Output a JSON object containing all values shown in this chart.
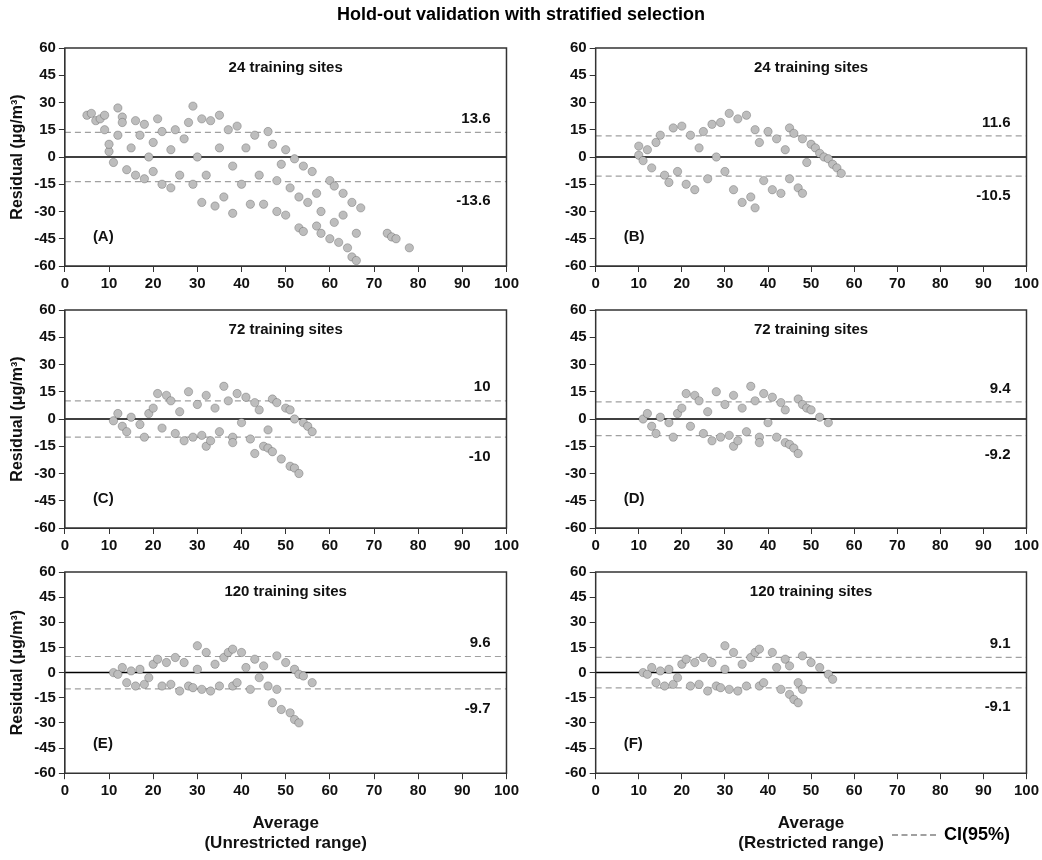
{
  "chart_data": [
    {
      "type": "scatter",
      "title": "Hold-out validation with stratified selection",
      "ylabel": "Residual (μg/m³)",
      "color": "#bdbdbd",
      "marker": "circle",
      "grid": false,
      "legend": false,
      "x": [
        5,
        6,
        7,
        8,
        9,
        9,
        10,
        10,
        11,
        12,
        12,
        13,
        13,
        14,
        15,
        16,
        16,
        17,
        18,
        18,
        19,
        20,
        20,
        21,
        22,
        22,
        24,
        24,
        25,
        26,
        27,
        28,
        29,
        29,
        30,
        31,
        31,
        32,
        33,
        34,
        35,
        35,
        36,
        37,
        38,
        38,
        39,
        40,
        41,
        42,
        43,
        44,
        45,
        46,
        47,
        48,
        48,
        49,
        50,
        50,
        51,
        52,
        53,
        53,
        54,
        54,
        55,
        56,
        57,
        57,
        58,
        58,
        60,
        60,
        61,
        61,
        62,
        63,
        63,
        64,
        65,
        65,
        66,
        66,
        67,
        73,
        74,
        75,
        78
      ],
      "values": [
        23,
        24,
        20,
        21,
        23,
        15,
        3,
        7,
        -3,
        27,
        12,
        22,
        19,
        -7,
        5,
        -10,
        20,
        12,
        -12,
        18,
        0,
        8,
        -8,
        21,
        -15,
        14,
        -17,
        4,
        15,
        -10,
        10,
        19,
        28,
        -15,
        0,
        21,
        -25,
        -10,
        20,
        -27,
        23,
        5,
        -22,
        15,
        -31,
        -5,
        17,
        -15,
        5,
        -26,
        12,
        -10,
        -26,
        14,
        7,
        -13,
        -30,
        -4,
        -32,
        4,
        -17,
        -1,
        -22,
        -39,
        -5,
        -41,
        -25,
        -8,
        -20,
        -38,
        -30,
        -42,
        -13,
        -45,
        -16,
        -36,
        -47,
        -20,
        -32,
        -50,
        -25,
        -55,
        -42,
        -57,
        -28,
        -42,
        -44,
        -45,
        -50
      ],
      "xlim": [
        0,
        100
      ],
      "xticks": [
        0,
        10,
        20,
        30,
        40,
        50,
        60,
        70,
        80,
        90,
        100
      ],
      "ylim": [
        -60,
        60
      ],
      "yticks": [
        -60,
        -45,
        -30,
        -15,
        0,
        15,
        30,
        45,
        60
      ],
      "ref_lines": [
        {
          "axis": "y",
          "value": 0,
          "color": "#000000",
          "line_style": "solid"
        },
        {
          "axis": "y",
          "value": 13.6,
          "label": "13.6",
          "color": "#a0a0a0",
          "line_style": "dashed"
        },
        {
          "axis": "y",
          "value": -13.6,
          "label": "-13.6",
          "color": "#a0a0a0",
          "line_style": "dashed"
        }
      ],
      "annotations": [
        "24 training sites",
        "(A)"
      ]
    },
    {
      "type": "scatter",
      "color": "#bdbdbd",
      "marker": "circle",
      "grid": false,
      "legend": false,
      "x": [
        10,
        10,
        11,
        12,
        13,
        14,
        15,
        16,
        17,
        18,
        19,
        20,
        21,
        22,
        23,
        24,
        25,
        26,
        27,
        28,
        29,
        30,
        31,
        32,
        33,
        34,
        35,
        36,
        37,
        37,
        38,
        39,
        40,
        41,
        42,
        43,
        44,
        45,
        45,
        46,
        47,
        48,
        48,
        49,
        50,
        51,
        52,
        53,
        54,
        55,
        56,
        57
      ],
      "values": [
        6,
        1,
        -2,
        4,
        -6,
        8,
        12,
        -10,
        -14,
        16,
        -8,
        17,
        -15,
        12,
        -18,
        5,
        14,
        -12,
        18,
        0,
        19,
        -8,
        24,
        -18,
        21,
        -25,
        23,
        -22,
        -28,
        15,
        8,
        -13,
        14,
        -18,
        10,
        -20,
        4,
        16,
        -12,
        13,
        -17,
        10,
        -20,
        -3,
        7,
        5,
        2,
        0,
        -1,
        -4,
        -6,
        -9
      ],
      "xlim": [
        0,
        100
      ],
      "xticks": [
        0,
        10,
        20,
        30,
        40,
        50,
        60,
        70,
        80,
        90,
        100
      ],
      "ylim": [
        -60,
        60
      ],
      "yticks": [
        -60,
        -45,
        -30,
        -15,
        0,
        15,
        30,
        45,
        60
      ],
      "ref_lines": [
        {
          "axis": "y",
          "value": 0,
          "color": "#000000",
          "line_style": "solid"
        },
        {
          "axis": "y",
          "value": 11.6,
          "label": "11.6",
          "color": "#a0a0a0",
          "line_style": "dashed"
        },
        {
          "axis": "y",
          "value": -10.5,
          "label": "-10.5",
          "color": "#a0a0a0",
          "line_style": "dashed"
        }
      ],
      "annotations": [
        "24 training sites",
        "(B)"
      ]
    },
    {
      "type": "scatter",
      "ylabel": "Residual (μg/m³)",
      "color": "#bdbdbd",
      "marker": "circle",
      "grid": false,
      "legend": false,
      "x": [
        11,
        12,
        13,
        14,
        15,
        17,
        18,
        19,
        20,
        21,
        22,
        23,
        24,
        25,
        26,
        27,
        28,
        29,
        30,
        31,
        32,
        32,
        33,
        34,
        35,
        36,
        37,
        38,
        38,
        39,
        40,
        41,
        42,
        43,
        43,
        44,
        45,
        46,
        46,
        47,
        47,
        48,
        49,
        50,
        51,
        51,
        52,
        52,
        53,
        54,
        55,
        56
      ],
      "values": [
        -1,
        3,
        -4,
        -7,
        1,
        -3,
        -10,
        3,
        6,
        14,
        -5,
        13,
        10,
        -8,
        4,
        -12,
        15,
        -10,
        8,
        -9,
        13,
        -15,
        -12,
        6,
        -7,
        18,
        10,
        -10,
        -13,
        14,
        -2,
        12,
        -11,
        9,
        -19,
        5,
        -15,
        -16,
        -6,
        11,
        -18,
        9,
        -22,
        6,
        -26,
        5,
        -27,
        0,
        -30,
        -2,
        -4,
        -7
      ],
      "xlim": [
        0,
        100
      ],
      "xticks": [
        0,
        10,
        20,
        30,
        40,
        50,
        60,
        70,
        80,
        90,
        100
      ],
      "ylim": [
        -60,
        60
      ],
      "yticks": [
        -60,
        -45,
        -30,
        -15,
        0,
        15,
        30,
        45,
        60
      ],
      "ref_lines": [
        {
          "axis": "y",
          "value": 0,
          "color": "#000000",
          "line_style": "solid"
        },
        {
          "axis": "y",
          "value": 10,
          "label": "10",
          "color": "#a0a0a0",
          "line_style": "dashed"
        },
        {
          "axis": "y",
          "value": -10,
          "label": "-10",
          "color": "#a0a0a0",
          "line_style": "dashed"
        }
      ],
      "annotations": [
        "72 training sites",
        "(C)"
      ]
    },
    {
      "type": "scatter",
      "color": "#bdbdbd",
      "marker": "circle",
      "grid": false,
      "legend": false,
      "x": [
        11,
        12,
        13,
        14,
        15,
        17,
        18,
        19,
        20,
        21,
        22,
        23,
        24,
        25,
        26,
        27,
        28,
        29,
        30,
        31,
        32,
        32,
        33,
        34,
        35,
        36,
        37,
        38,
        38,
        39,
        40,
        41,
        42,
        43,
        44,
        44,
        45,
        46,
        47,
        47,
        48,
        49,
        50,
        52,
        54
      ],
      "values": [
        0,
        3,
        -4,
        -8,
        1,
        -2,
        -10,
        3,
        6,
        14,
        -4,
        13,
        10,
        -8,
        4,
        -12,
        15,
        -10,
        8,
        -9,
        13,
        -15,
        -12,
        6,
        -7,
        18,
        10,
        -10,
        -13,
        14,
        -2,
        12,
        -10,
        9,
        -13,
        5,
        -14,
        -16,
        -19,
        11,
        8,
        6,
        5,
        1,
        -2
      ],
      "xlim": [
        0,
        100
      ],
      "xticks": [
        0,
        10,
        20,
        30,
        40,
        50,
        60,
        70,
        80,
        90,
        100
      ],
      "ylim": [
        -60,
        60
      ],
      "yticks": [
        -60,
        -45,
        -30,
        -15,
        0,
        15,
        30,
        45,
        60
      ],
      "ref_lines": [
        {
          "axis": "y",
          "value": 0,
          "color": "#000000",
          "line_style": "solid"
        },
        {
          "axis": "y",
          "value": 9.4,
          "label": "9.4",
          "color": "#a0a0a0",
          "line_style": "dashed"
        },
        {
          "axis": "y",
          "value": -9.2,
          "label": "-9.2",
          "color": "#a0a0a0",
          "line_style": "dashed"
        }
      ],
      "annotations": [
        "72 training sites",
        "(D)"
      ]
    },
    {
      "type": "scatter",
      "xlabel": "Average\n(Unrestricted range)",
      "ylabel": "Residual (μg/m³)",
      "color": "#bdbdbd",
      "marker": "circle",
      "grid": false,
      "legend": false,
      "x": [
        11,
        12,
        13,
        14,
        15,
        16,
        17,
        18,
        19,
        20,
        21,
        22,
        23,
        24,
        25,
        26,
        27,
        28,
        29,
        30,
        30,
        31,
        32,
        33,
        34,
        35,
        36,
        37,
        38,
        38,
        39,
        40,
        41,
        42,
        43,
        44,
        45,
        46,
        47,
        48,
        48,
        49,
        50,
        51,
        52,
        52,
        53,
        53,
        54,
        56
      ],
      "values": [
        0,
        -1,
        3,
        -6,
        1,
        -8,
        2,
        -7,
        -3,
        5,
        8,
        -8,
        6,
        -7,
        9,
        -11,
        6,
        -8,
        -9,
        16,
        2,
        -10,
        12,
        -11,
        5,
        -8,
        9,
        12,
        14,
        -8,
        -6,
        12,
        3,
        -10,
        8,
        -3,
        4,
        -8,
        -18,
        10,
        -10,
        -22,
        6,
        -24,
        2,
        -28,
        -1,
        -30,
        -2,
        -6
      ],
      "xlim": [
        0,
        100
      ],
      "xticks": [
        0,
        10,
        20,
        30,
        40,
        50,
        60,
        70,
        80,
        90,
        100
      ],
      "ylim": [
        -60,
        60
      ],
      "yticks": [
        -60,
        -45,
        -30,
        -15,
        0,
        15,
        30,
        45,
        60
      ],
      "ref_lines": [
        {
          "axis": "y",
          "value": 0,
          "color": "#000000",
          "line_style": "solid"
        },
        {
          "axis": "y",
          "value": 9.6,
          "label": "9.6",
          "color": "#a0a0a0",
          "line_style": "dashed"
        },
        {
          "axis": "y",
          "value": -9.7,
          "label": "-9.7",
          "color": "#a0a0a0",
          "line_style": "dashed"
        }
      ],
      "annotations": [
        "120 training sites",
        "(E)"
      ]
    },
    {
      "type": "scatter",
      "xlabel": "Average\n(Restricted range)",
      "color": "#bdbdbd",
      "marker": "circle",
      "grid": false,
      "legend": false,
      "x": [
        11,
        12,
        13,
        14,
        15,
        16,
        17,
        18,
        19,
        20,
        21,
        22,
        23,
        24,
        25,
        26,
        27,
        28,
        29,
        30,
        30,
        31,
        32,
        33,
        34,
        35,
        36,
        37,
        38,
        38,
        39,
        41,
        42,
        43,
        44,
        45,
        45,
        46,
        47,
        47,
        48,
        48,
        50,
        52,
        54,
        55
      ],
      "values": [
        0,
        -1,
        3,
        -6,
        1,
        -8,
        2,
        -7,
        -3,
        5,
        8,
        -8,
        6,
        -7,
        9,
        -11,
        6,
        -8,
        -9,
        16,
        2,
        -10,
        12,
        -11,
        5,
        -8,
        9,
        12,
        14,
        -8,
        -6,
        12,
        3,
        -10,
        8,
        -13,
        4,
        -16,
        -18,
        -6,
        10,
        -10,
        6,
        3,
        -1,
        -4
      ],
      "xlim": [
        0,
        100
      ],
      "xticks": [
        0,
        10,
        20,
        30,
        40,
        50,
        60,
        70,
        80,
        90,
        100
      ],
      "ylim": [
        -60,
        60
      ],
      "yticks": [
        -60,
        -45,
        -30,
        -15,
        0,
        15,
        30,
        45,
        60
      ],
      "ref_lines": [
        {
          "axis": "y",
          "value": 0,
          "color": "#000000",
          "line_style": "solid"
        },
        {
          "axis": "y",
          "value": 9.1,
          "label": "9.1",
          "color": "#a0a0a0",
          "line_style": "dashed"
        },
        {
          "axis": "y",
          "value": -9.1,
          "label": "-9.1",
          "color": "#a0a0a0",
          "line_style": "dashed"
        }
      ],
      "annotations": [
        "120 training sites",
        "(F)",
        "CI(95%)"
      ]
    }
  ]
}
